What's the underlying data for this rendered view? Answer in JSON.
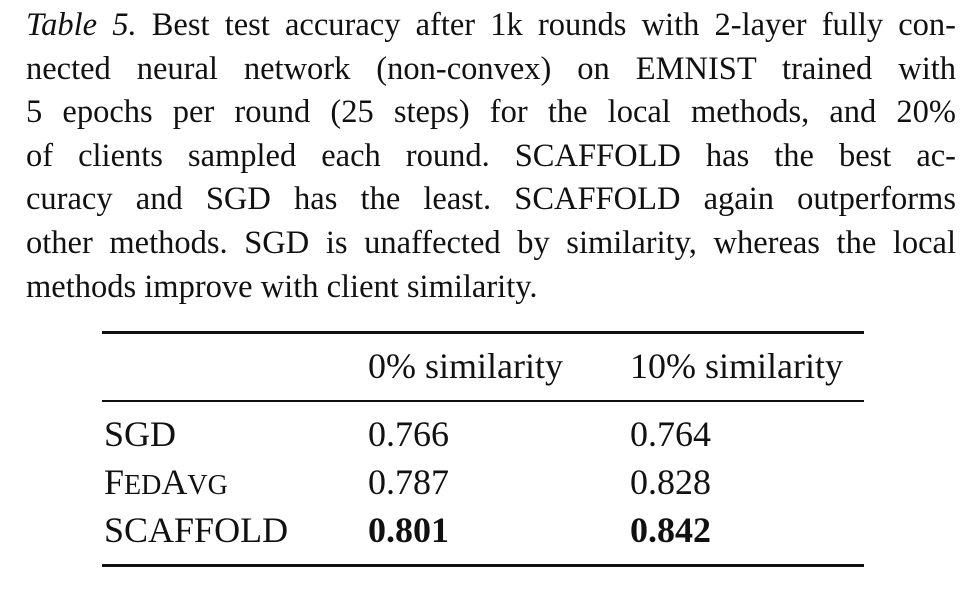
{
  "caption": {
    "label": "Table 5.",
    "lines": [
      " Best test accuracy after 1k rounds with 2-layer fully con-",
      "nected neural network (non-convex) on EMNIST trained with",
      "5 epochs per round (25 steps) for the local methods, and 20%",
      "of clients sampled each round.  SCAFFOLD has the best ac-",
      "curacy and SGD has the least.  SCAFFOLD again outperforms",
      "other methods. SGD is unaffected by similarity, whereas the local",
      "methods improve with client similarity."
    ]
  },
  "table": {
    "headers": [
      "",
      "0% similarity",
      "10% similarity"
    ],
    "rows": [
      {
        "method": "SGD",
        "v0": "0.766",
        "v1": "0.764",
        "bold": false
      },
      {
        "method_parts": [
          "F",
          "ED",
          "A",
          "VG"
        ],
        "method": "FEDAVG",
        "v0": "0.787",
        "v1": "0.828",
        "bold": false
      },
      {
        "method": "SCAFFOLD",
        "v0": "0.801",
        "v1": "0.842",
        "bold": true
      }
    ]
  }
}
